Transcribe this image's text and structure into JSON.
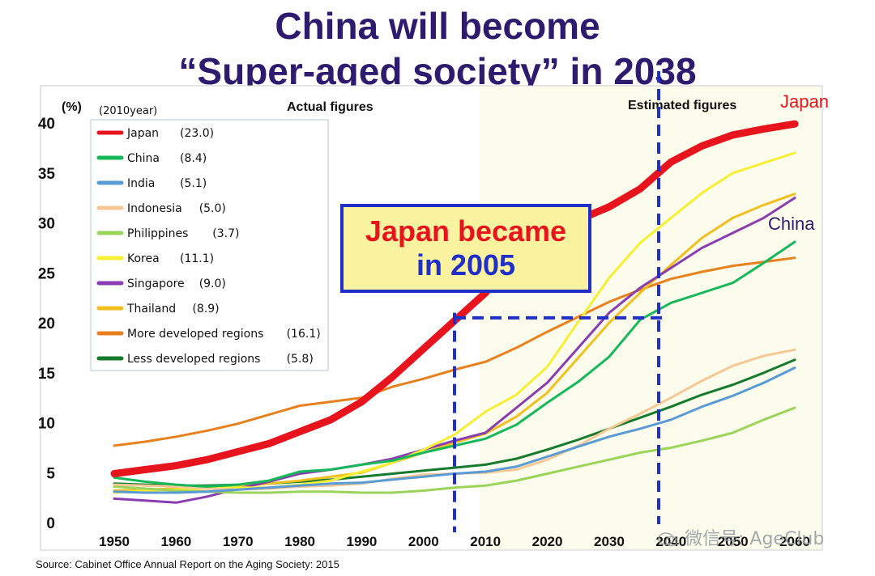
{
  "title": {
    "line1": "China will become",
    "line2": "“Super-aged society” in 2038"
  },
  "source": "Source: Cabinet Office Annual Report on the Aging Society: 2015",
  "watermark": "微信号: AgeClub",
  "callout": {
    "line1": "Japan became",
    "line2": "in 2005"
  },
  "colors": {
    "title": "#2e1a6e",
    "dashed": "#1f2fc8",
    "callout_fill": "#fbf3a0",
    "japan_label": "#e8141d",
    "china_label": "#2e1a6e"
  },
  "chart_data": {
    "type": "line",
    "y_unit_label": "(%)",
    "legend_title": "(2010year)",
    "section_labels": [
      "Actual figures",
      "Estimated figures"
    ],
    "end_labels": [
      "Japan",
      "China"
    ],
    "x": [
      1950,
      1955,
      1960,
      1965,
      1970,
      1975,
      1980,
      1985,
      1990,
      1995,
      2000,
      2005,
      2010,
      2015,
      2020,
      2025,
      2030,
      2035,
      2040,
      2045,
      2050,
      2055,
      2060
    ],
    "x_tick_labels": [
      "1950",
      "1960",
      "1970",
      "1980",
      "1990",
      "2000",
      "2010",
      "2020",
      "2030",
      "2040",
      "2050",
      "2060"
    ],
    "y_ticks": [
      0,
      5,
      10,
      15,
      20,
      25,
      30,
      35,
      40
    ],
    "ylim": [
      0,
      40
    ],
    "xlim": [
      1950,
      2060
    ],
    "grid": false,
    "legend_position": "top-left",
    "series": [
      {
        "name": "Japan",
        "legend_value": "(23.0)",
        "color": "#e8141d",
        "width": 9,
        "values": [
          4.9,
          5.3,
          5.7,
          6.3,
          7.1,
          7.9,
          9.1,
          10.3,
          12.1,
          14.6,
          17.4,
          20.2,
          23.0,
          26.7,
          29.1,
          30.3,
          31.6,
          33.4,
          36.1,
          37.7,
          38.8,
          39.4,
          39.9
        ]
      },
      {
        "name": "China",
        "legend_value": "(8.4)",
        "color": "#16b85a",
        "width": 3,
        "values": [
          4.5,
          4.1,
          3.8,
          3.6,
          3.8,
          4.2,
          5.1,
          5.3,
          5.8,
          6.2,
          7.0,
          7.7,
          8.4,
          9.8,
          12.0,
          14.1,
          16.6,
          20.3,
          22.0,
          23.0,
          24.0,
          26.0,
          28.1
        ]
      },
      {
        "name": "India",
        "legend_value": "(5.1)",
        "color": "#5a9bd4",
        "width": 3,
        "values": [
          3.1,
          3.0,
          3.0,
          3.1,
          3.3,
          3.5,
          3.7,
          3.9,
          4.0,
          4.3,
          4.6,
          4.9,
          5.1,
          5.6,
          6.6,
          7.6,
          8.6,
          9.4,
          10.3,
          11.6,
          12.7,
          14.0,
          15.5
        ]
      },
      {
        "name": "Indonesia",
        "legend_value": "(5.0)",
        "color": "#f5c896",
        "width": 3,
        "values": [
          3.8,
          3.7,
          3.6,
          3.4,
          3.3,
          3.4,
          3.6,
          3.7,
          3.9,
          4.4,
          4.8,
          4.9,
          5.0,
          5.3,
          6.3,
          7.7,
          9.4,
          10.9,
          12.5,
          14.2,
          15.7,
          16.7,
          17.3
        ]
      },
      {
        "name": "Philippines",
        "legend_value": "(3.7)",
        "color": "#9bd45a",
        "width": 3,
        "values": [
          3.6,
          3.4,
          3.2,
          3.1,
          3.0,
          3.0,
          3.1,
          3.1,
          3.0,
          3.0,
          3.2,
          3.5,
          3.7,
          4.2,
          4.9,
          5.6,
          6.3,
          7.0,
          7.5,
          8.2,
          9.0,
          10.3,
          11.5
        ]
      },
      {
        "name": "Korea",
        "legend_value": "(11.1)",
        "color": "#f8ef34",
        "width": 3,
        "values": [
          3.0,
          3.2,
          3.3,
          3.4,
          3.5,
          3.5,
          3.8,
          4.2,
          5.1,
          6.0,
          7.3,
          8.8,
          11.1,
          12.8,
          15.6,
          20.1,
          24.5,
          28.0,
          30.5,
          33.0,
          35.0,
          36.0,
          37.0
        ]
      },
      {
        "name": "Singapore",
        "legend_value": "(9.0)",
        "color": "#8a3db0",
        "width": 3,
        "values": [
          2.4,
          2.2,
          2.0,
          2.6,
          3.4,
          4.1,
          4.9,
          5.3,
          5.8,
          6.4,
          7.3,
          8.2,
          9.0,
          11.5,
          14.0,
          17.5,
          21.0,
          23.5,
          25.5,
          27.5,
          29.0,
          30.5,
          32.5
        ]
      },
      {
        "name": "Thailand",
        "legend_value": "(8.9)",
        "color": "#f0c020",
        "width": 3,
        "values": [
          3.2,
          3.3,
          3.4,
          3.5,
          3.6,
          3.9,
          4.2,
          4.6,
          5.0,
          6.0,
          7.0,
          8.0,
          8.9,
          10.6,
          13.0,
          16.5,
          20.0,
          23.0,
          25.8,
          28.5,
          30.5,
          31.8,
          32.9
        ]
      },
      {
        "name": "More developed regions",
        "legend_value": "(16.1)",
        "color": "#e8801e",
        "width": 3,
        "values": [
          7.7,
          8.1,
          8.6,
          9.2,
          9.9,
          10.8,
          11.7,
          12.1,
          12.5,
          13.6,
          14.4,
          15.3,
          16.1,
          17.5,
          19.1,
          20.6,
          22.1,
          23.3,
          24.4,
          25.1,
          25.7,
          26.1,
          26.5
        ]
      },
      {
        "name": "Less developed regions",
        "legend_value": "(5.8)",
        "color": "#157a2c",
        "width": 3,
        "values": [
          3.9,
          3.8,
          3.7,
          3.7,
          3.8,
          3.9,
          4.1,
          4.3,
          4.6,
          4.9,
          5.2,
          5.5,
          5.8,
          6.4,
          7.3,
          8.3,
          9.4,
          10.5,
          11.6,
          12.8,
          13.8,
          15.0,
          16.3
        ]
      }
    ]
  }
}
